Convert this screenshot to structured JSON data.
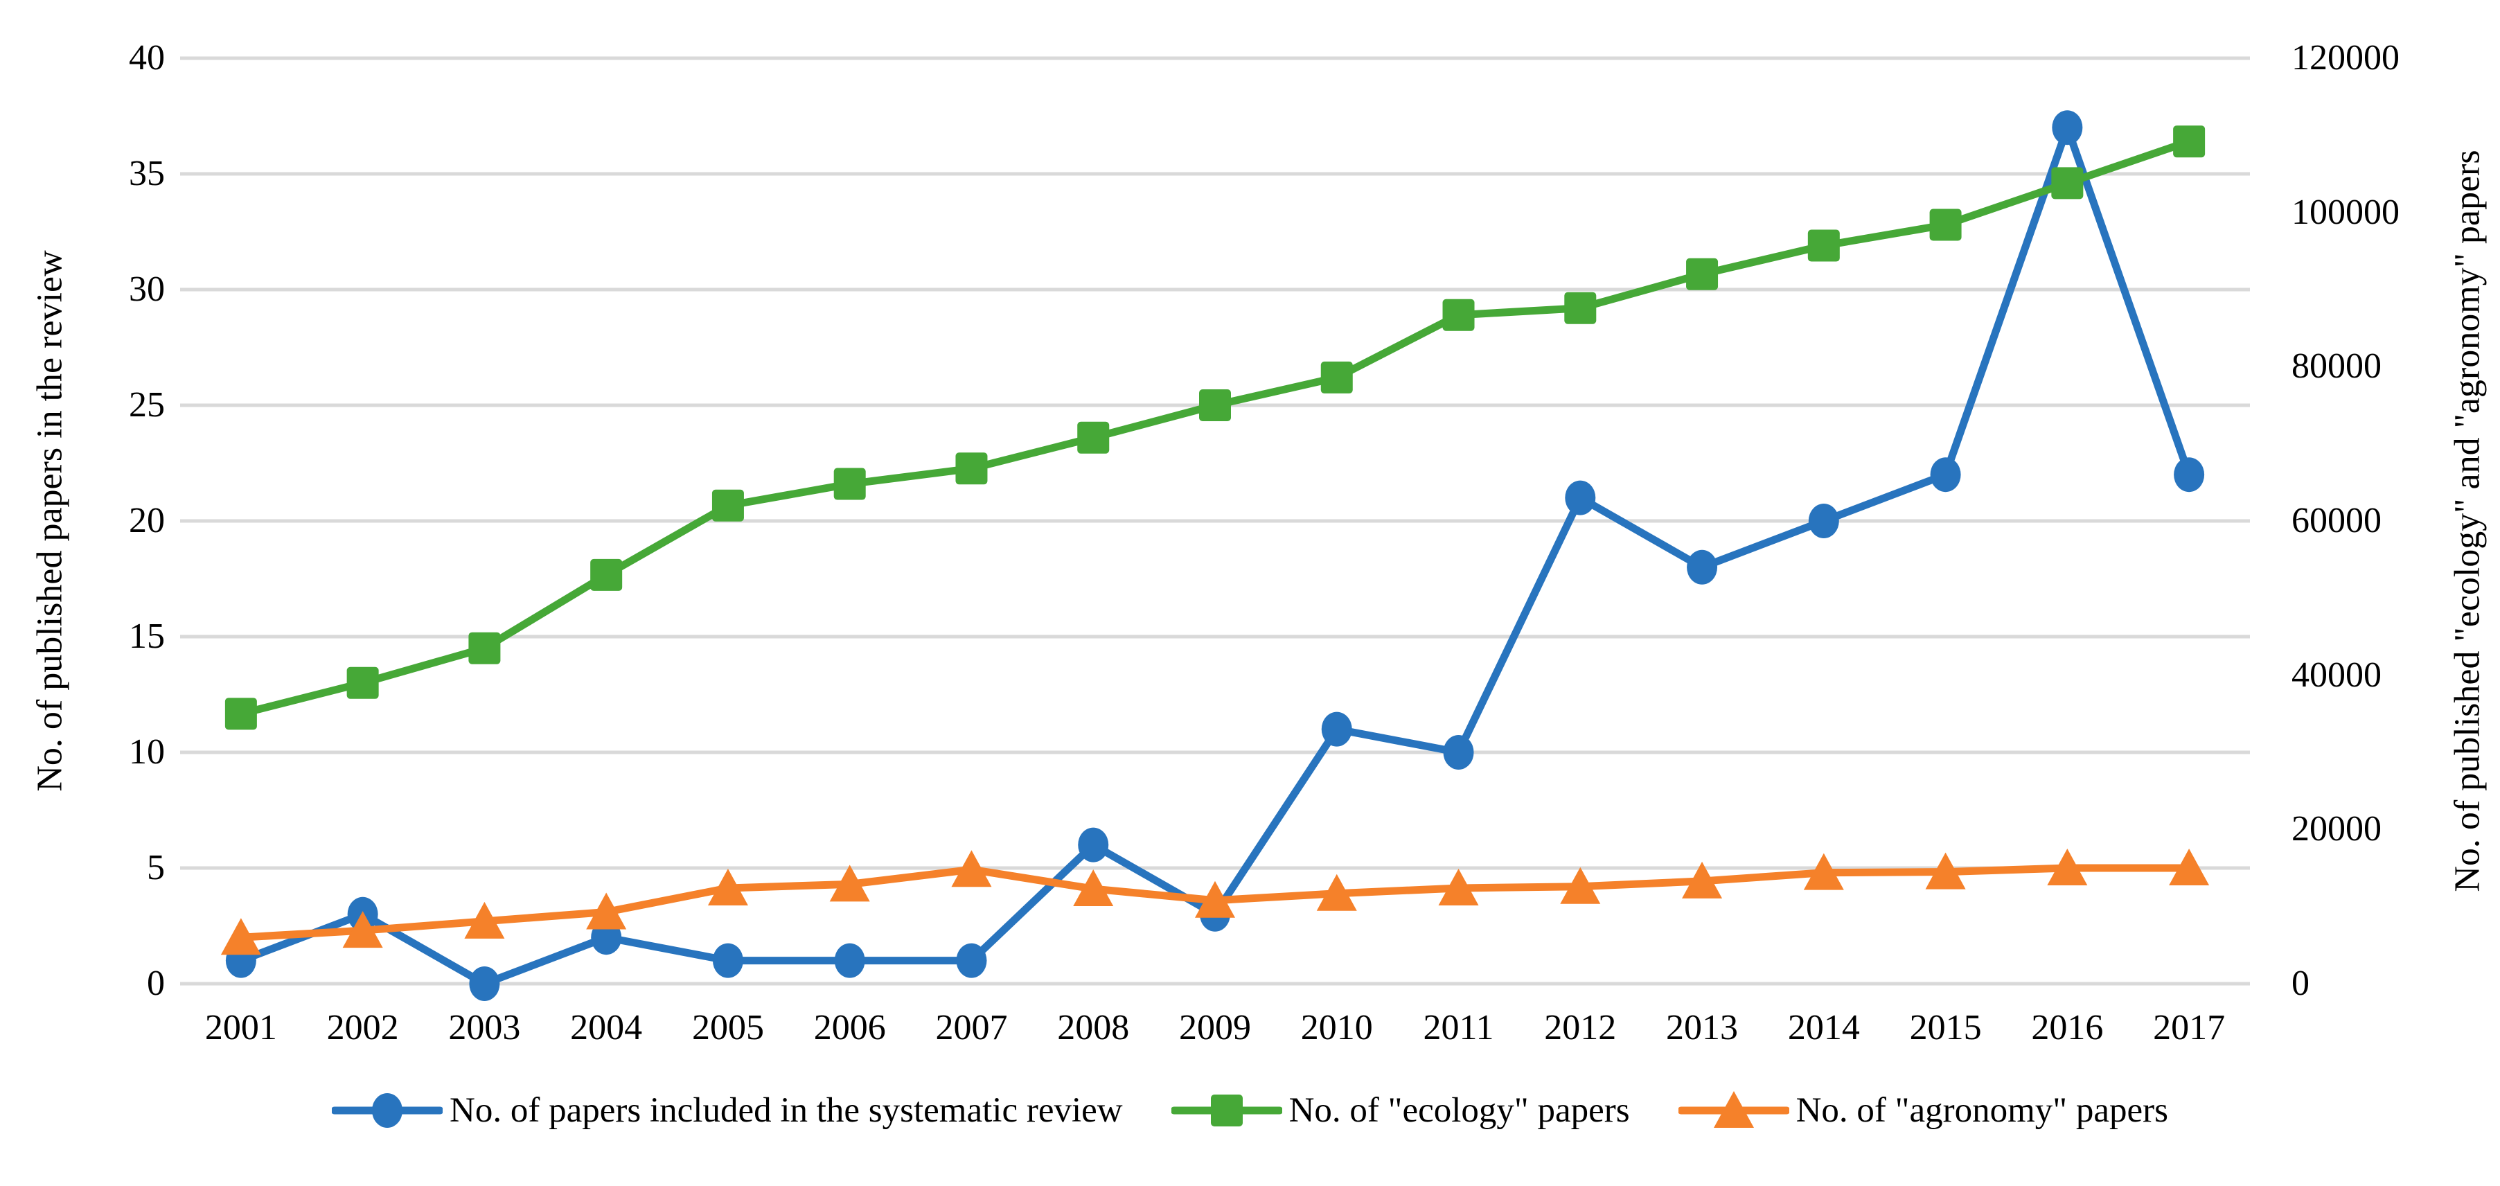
{
  "chart_data": {
    "type": "line",
    "title": "",
    "categories": [
      "2001",
      "2002",
      "2003",
      "2004",
      "2005",
      "2006",
      "2007",
      "2008",
      "2009",
      "2010",
      "2011",
      "2012",
      "2013",
      "2014",
      "2015",
      "2016",
      "2017"
    ],
    "left_axis": {
      "label": "No. of published papers in the review",
      "range": [
        0,
        40
      ],
      "tick_step": 5,
      "ticks": [
        0,
        5,
        10,
        15,
        20,
        25,
        30,
        35,
        40
      ]
    },
    "right_axis": {
      "label": "No. of published \"ecology\" and \"agronomy\" papers",
      "range": [
        0,
        120000
      ],
      "tick_step": 20000,
      "ticks": [
        0,
        20000,
        40000,
        60000,
        80000,
        100000,
        120000
      ]
    },
    "grid": true,
    "gridline_color": "#d9d9d9",
    "legend_position": "bottom",
    "series": [
      {
        "name": "No. of papers included in the systematic review",
        "axis": "left",
        "marker": "circle",
        "color": "#2874be",
        "values": [
          1,
          3,
          0,
          2,
          1,
          1,
          1,
          6,
          3,
          11,
          10,
          21,
          18,
          20,
          22,
          37,
          22
        ]
      },
      {
        "name": "No. of \"ecology\" papers",
        "axis": "right",
        "marker": "square",
        "color": "#46a837",
        "values": [
          35000,
          39000,
          43500,
          53000,
          62000,
          64800,
          66800,
          70800,
          75000,
          78600,
          86700,
          87600,
          92000,
          95700,
          98400,
          103800,
          109200
        ]
      },
      {
        "name": "No. of \"agronomy\" papers",
        "axis": "right",
        "marker": "triangle",
        "color": "#f5812a",
        "values": [
          6000,
          6900,
          8100,
          9300,
          12400,
          12900,
          14800,
          12300,
          10800,
          11700,
          12400,
          12600,
          13300,
          14400,
          14500,
          15000,
          15000
        ]
      }
    ]
  },
  "legend": {
    "items": [
      {
        "label": "No. of papers included in the systematic review",
        "color": "#2874be",
        "marker": "circle"
      },
      {
        "label": "No. of \"ecology\" papers",
        "color": "#46a837",
        "marker": "square"
      },
      {
        "label": "No. of \"agronomy\" papers",
        "color": "#f5812a",
        "marker": "triangle"
      }
    ]
  }
}
